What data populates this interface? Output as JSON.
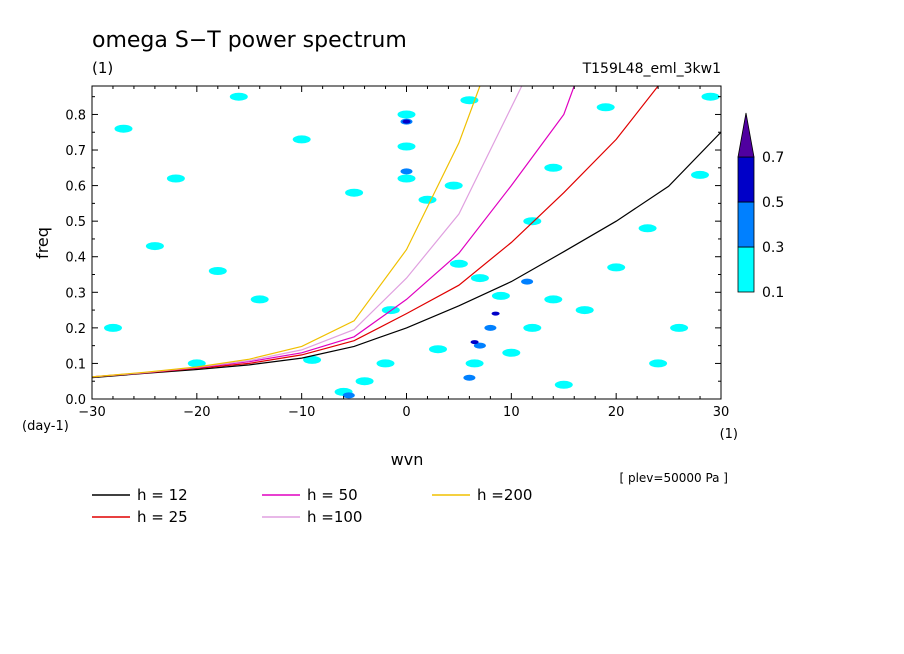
{
  "chart_data": {
    "type": "contour",
    "title": "omega S−T power spectrum",
    "title_units": "(1)",
    "experiment": "T159L48_eml_3kw1",
    "xlabel": "wvn",
    "ylabel": "freq",
    "x_units": "(1)",
    "y_units": "(day-1)",
    "xlim": [
      -30,
      30
    ],
    "ylim": [
      0,
      0.88
    ],
    "xticks": [
      -30,
      -20,
      -10,
      0,
      10,
      20,
      30
    ],
    "xtick_labels": [
      "−30",
      "−20",
      "−10",
      "0",
      "10",
      "20",
      "30"
    ],
    "yticks": [
      0,
      0.1,
      0.2,
      0.3,
      0.4,
      0.5,
      0.6,
      0.7,
      0.8
    ],
    "ytick_labels": [
      "0.0",
      "0.1",
      "0.2",
      "0.3",
      "0.4",
      "0.5",
      "0.6",
      "0.7",
      "0.8"
    ],
    "annotation": "[ plev=50000 Pa ]",
    "colorbar": {
      "levels": [
        "0.1",
        "0.3",
        "0.5",
        "0.7"
      ],
      "colors": [
        "#00ffff",
        "#0080ff",
        "#0000c8",
        "#5000a0"
      ]
    },
    "series": [
      {
        "name": "h = 12",
        "h": 12,
        "color": "#000000",
        "x": [
          -30,
          -25,
          -20,
          -15,
          -10,
          -5,
          0,
          5,
          10,
          15,
          20,
          25,
          30
        ],
        "y": [
          0.06,
          0.072,
          0.083,
          0.096,
          0.115,
          0.148,
          0.2,
          0.262,
          0.33,
          0.414,
          0.5,
          0.598,
          0.75
        ]
      },
      {
        "name": "h = 25",
        "h": 25,
        "color": "#e00000",
        "x": [
          -30,
          -25,
          -20,
          -15,
          -10,
          -5,
          0,
          5,
          10,
          15,
          20,
          24
        ],
        "y": [
          0.062,
          0.073,
          0.086,
          0.1,
          0.124,
          0.164,
          0.24,
          0.32,
          0.44,
          0.58,
          0.73,
          0.88
        ]
      },
      {
        "name": "h = 50",
        "h": 50,
        "color": "#e000c0",
        "x": [
          -30,
          -25,
          -20,
          -15,
          -10,
          -5,
          0,
          5,
          10,
          15,
          16
        ],
        "y": [
          0.062,
          0.074,
          0.088,
          0.105,
          0.13,
          0.175,
          0.28,
          0.41,
          0.6,
          0.8,
          0.88
        ]
      },
      {
        "name": "h =100",
        "h": 100,
        "color": "#e0a0e0",
        "x": [
          -30,
          -25,
          -20,
          -15,
          -10,
          -5,
          0,
          5,
          10,
          11
        ],
        "y": [
          0.062,
          0.074,
          0.089,
          0.108,
          0.138,
          0.195,
          0.34,
          0.52,
          0.82,
          0.88
        ]
      },
      {
        "name": "h =200",
        "h": 200,
        "color": "#f0c000",
        "x": [
          -30,
          -25,
          -20,
          -15,
          -10,
          -5,
          0,
          5,
          7
        ],
        "y": [
          0.062,
          0.075,
          0.09,
          0.112,
          0.148,
          0.22,
          0.42,
          0.72,
          0.88
        ]
      }
    ],
    "contour_blobs": [
      {
        "x": 2,
        "y": 0.56,
        "level": "0.1"
      },
      {
        "x": -1.5,
        "y": 0.25,
        "level": "0.1"
      },
      {
        "x": 6,
        "y": 0.84,
        "level": "0.1"
      },
      {
        "x": 4.5,
        "y": 0.6,
        "level": "0.1"
      },
      {
        "x": 7,
        "y": 0.34,
        "level": "0.1"
      },
      {
        "x": 5,
        "y": 0.38,
        "level": "0.1"
      },
      {
        "x": 12,
        "y": 0.5,
        "level": "0.1"
      },
      {
        "x": 14,
        "y": 0.65,
        "level": "0.1"
      },
      {
        "x": 17,
        "y": 0.25,
        "level": "0.1"
      },
      {
        "x": 19,
        "y": 0.82,
        "level": "0.1"
      },
      {
        "x": 23,
        "y": 0.48,
        "level": "0.1"
      },
      {
        "x": 26,
        "y": 0.2,
        "level": "0.1"
      },
      {
        "x": 28,
        "y": 0.63,
        "level": "0.1"
      },
      {
        "x": 29,
        "y": 0.85,
        "level": "0.1"
      },
      {
        "x": 9,
        "y": 0.29,
        "level": "0.1"
      },
      {
        "x": 12,
        "y": 0.2,
        "level": "0.1"
      },
      {
        "x": 14,
        "y": 0.28,
        "level": "0.1"
      },
      {
        "x": 10,
        "y": 0.13,
        "level": "0.1"
      },
      {
        "x": 6.5,
        "y": 0.1,
        "level": "0.1"
      },
      {
        "x": 3,
        "y": 0.14,
        "level": "0.1"
      },
      {
        "x": -2,
        "y": 0.1,
        "level": "0.1"
      },
      {
        "x": -4,
        "y": 0.05,
        "level": "0.1"
      },
      {
        "x": -6,
        "y": 0.02,
        "level": "0.1"
      },
      {
        "x": -9,
        "y": 0.11,
        "level": "0.1"
      },
      {
        "x": -14,
        "y": 0.28,
        "level": "0.1"
      },
      {
        "x": -18,
        "y": 0.36,
        "level": "0.1"
      },
      {
        "x": -24,
        "y": 0.43,
        "level": "0.1"
      },
      {
        "x": -27,
        "y": 0.76,
        "level": "0.1"
      },
      {
        "x": -22,
        "y": 0.62,
        "level": "0.1"
      },
      {
        "x": -10,
        "y": 0.73,
        "level": "0.1"
      },
      {
        "x": -16,
        "y": 0.85,
        "level": "0.1"
      },
      {
        "x": -5,
        "y": 0.58,
        "level": "0.1"
      },
      {
        "x": 0,
        "y": 0.8,
        "level": "0.1"
      },
      {
        "x": 0,
        "y": 0.62,
        "level": "0.1"
      },
      {
        "x": 0,
        "y": 0.71,
        "level": "0.1"
      },
      {
        "x": 20,
        "y": 0.37,
        "level": "0.1"
      },
      {
        "x": 24,
        "y": 0.1,
        "level": "0.1"
      },
      {
        "x": 15,
        "y": 0.04,
        "level": "0.1"
      },
      {
        "x": -28,
        "y": 0.2,
        "level": "0.1"
      },
      {
        "x": -20,
        "y": 0.1,
        "level": "0.1"
      },
      {
        "x": 8,
        "y": 0.2,
        "level": "0.3"
      },
      {
        "x": 11.5,
        "y": 0.33,
        "level": "0.3"
      },
      {
        "x": 7,
        "y": 0.15,
        "level": "0.3"
      },
      {
        "x": 0,
        "y": 0.78,
        "level": "0.3"
      },
      {
        "x": 0,
        "y": 0.64,
        "level": "0.3"
      },
      {
        "x": 6,
        "y": 0.06,
        "level": "0.3"
      },
      {
        "x": -5.5,
        "y": 0.01,
        "level": "0.3"
      },
      {
        "x": 8.5,
        "y": 0.24,
        "level": "0.5"
      },
      {
        "x": 6.5,
        "y": 0.16,
        "level": "0.5"
      },
      {
        "x": 0,
        "y": 0.78,
        "level": "0.5"
      }
    ]
  }
}
